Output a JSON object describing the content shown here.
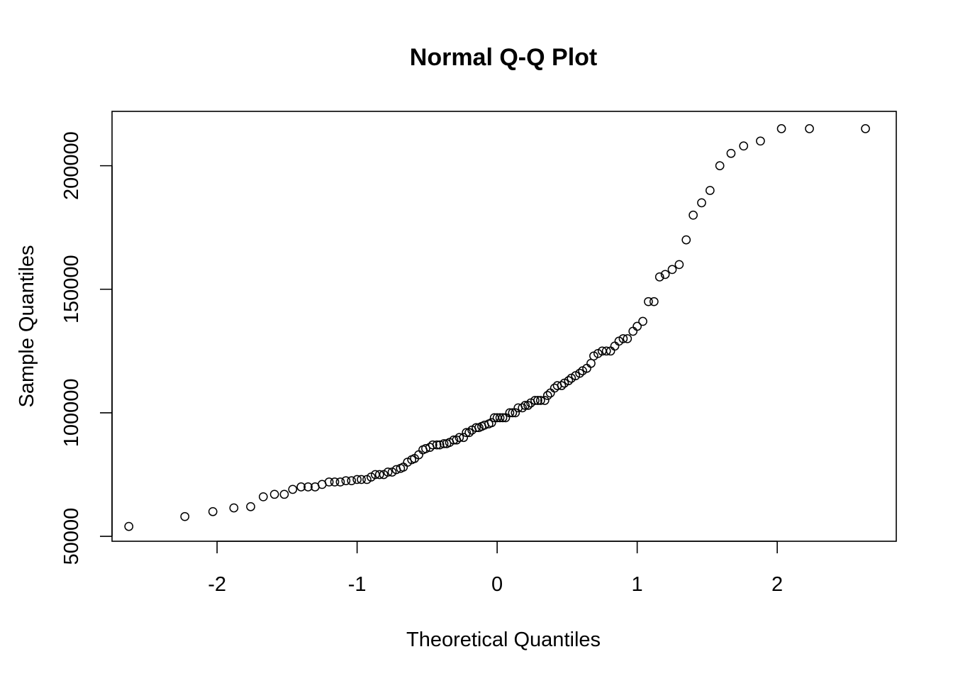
{
  "chart_data": {
    "type": "scatter",
    "title": "Normal Q-Q Plot",
    "xlabel": "Theoretical Quantiles",
    "ylabel": "Sample Quantiles",
    "xlim": [
      -2.75,
      2.85
    ],
    "ylim": [
      48000,
      222000
    ],
    "x_ticks": [
      -2,
      -1,
      0,
      1,
      2
    ],
    "x_tick_labels": [
      "-2",
      "-1",
      "0",
      "1",
      "2"
    ],
    "y_ticks": [
      50000,
      100000,
      150000,
      200000
    ],
    "y_tick_labels": [
      "50000",
      "100000",
      "150000",
      "200000"
    ],
    "grid": false,
    "marker": "open-circle",
    "points": [
      [
        -2.63,
        54000
      ],
      [
        -2.23,
        58000
      ],
      [
        -2.03,
        60000
      ],
      [
        -1.88,
        61500
      ],
      [
        -1.76,
        62000
      ],
      [
        -1.67,
        66000
      ],
      [
        -1.59,
        67000
      ],
      [
        -1.52,
        67000
      ],
      [
        -1.46,
        69000
      ],
      [
        -1.4,
        70000
      ],
      [
        -1.35,
        70000
      ],
      [
        -1.3,
        70000
      ],
      [
        -1.25,
        71000
      ],
      [
        -1.2,
        72000
      ],
      [
        -1.16,
        72000
      ],
      [
        -1.12,
        72000
      ],
      [
        -1.08,
        72500
      ],
      [
        -1.04,
        72500
      ],
      [
        -1.0,
        73000
      ],
      [
        -0.97,
        73000
      ],
      [
        -0.93,
        73000
      ],
      [
        -0.9,
        74000
      ],
      [
        -0.87,
        75000
      ],
      [
        -0.84,
        75000
      ],
      [
        -0.81,
        75000
      ],
      [
        -0.78,
        76000
      ],
      [
        -0.75,
        76000
      ],
      [
        -0.72,
        77000
      ],
      [
        -0.69,
        77500
      ],
      [
        -0.67,
        78000
      ],
      [
        -0.64,
        80000
      ],
      [
        -0.61,
        81000
      ],
      [
        -0.59,
        81500
      ],
      [
        -0.56,
        83000
      ],
      [
        -0.53,
        85000
      ],
      [
        -0.51,
        85500
      ],
      [
        -0.48,
        86000
      ],
      [
        -0.46,
        87000
      ],
      [
        -0.43,
        87000
      ],
      [
        -0.41,
        87000
      ],
      [
        -0.38,
        87500
      ],
      [
        -0.36,
        87500
      ],
      [
        -0.34,
        88000
      ],
      [
        -0.31,
        89000
      ],
      [
        -0.29,
        89000
      ],
      [
        -0.27,
        90000
      ],
      [
        -0.24,
        90000
      ],
      [
        -0.22,
        92000
      ],
      [
        -0.2,
        92000
      ],
      [
        -0.18,
        93000
      ],
      [
        -0.15,
        94000
      ],
      [
        -0.13,
        94000
      ],
      [
        -0.11,
        94500
      ],
      [
        -0.09,
        95000
      ],
      [
        -0.06,
        95500
      ],
      [
        -0.04,
        96000
      ],
      [
        -0.02,
        98000
      ],
      [
        0.0,
        98000
      ],
      [
        0.02,
        98000
      ],
      [
        0.04,
        98000
      ],
      [
        0.06,
        98000
      ],
      [
        0.09,
        100000
      ],
      [
        0.11,
        100000
      ],
      [
        0.13,
        100000
      ],
      [
        0.15,
        102000
      ],
      [
        0.18,
        102000
      ],
      [
        0.2,
        103000
      ],
      [
        0.22,
        103000
      ],
      [
        0.24,
        104000
      ],
      [
        0.27,
        105000
      ],
      [
        0.29,
        105000
      ],
      [
        0.31,
        105000
      ],
      [
        0.34,
        105000
      ],
      [
        0.36,
        107000
      ],
      [
        0.38,
        108000
      ],
      [
        0.41,
        110000
      ],
      [
        0.43,
        111000
      ],
      [
        0.46,
        111000
      ],
      [
        0.48,
        112000
      ],
      [
        0.51,
        113000
      ],
      [
        0.53,
        114000
      ],
      [
        0.56,
        115000
      ],
      [
        0.59,
        116000
      ],
      [
        0.61,
        117000
      ],
      [
        0.64,
        118000
      ],
      [
        0.67,
        120000
      ],
      [
        0.69,
        123000
      ],
      [
        0.72,
        124000
      ],
      [
        0.75,
        125000
      ],
      [
        0.78,
        125000
      ],
      [
        0.81,
        125000
      ],
      [
        0.84,
        127000
      ],
      [
        0.87,
        129000
      ],
      [
        0.9,
        130000
      ],
      [
        0.93,
        130000
      ],
      [
        0.97,
        133000
      ],
      [
        1.0,
        135000
      ],
      [
        1.04,
        137000
      ],
      [
        1.08,
        145000
      ],
      [
        1.12,
        145000
      ],
      [
        1.16,
        155000
      ],
      [
        1.2,
        156000
      ],
      [
        1.25,
        158000
      ],
      [
        1.3,
        160000
      ],
      [
        1.35,
        170000
      ],
      [
        1.4,
        180000
      ],
      [
        1.46,
        185000
      ],
      [
        1.52,
        190000
      ],
      [
        1.59,
        200000
      ],
      [
        1.67,
        205000
      ],
      [
        1.76,
        208000
      ],
      [
        1.88,
        210000
      ],
      [
        2.03,
        215000
      ],
      [
        2.23,
        215000
      ],
      [
        2.63,
        215000
      ]
    ]
  }
}
